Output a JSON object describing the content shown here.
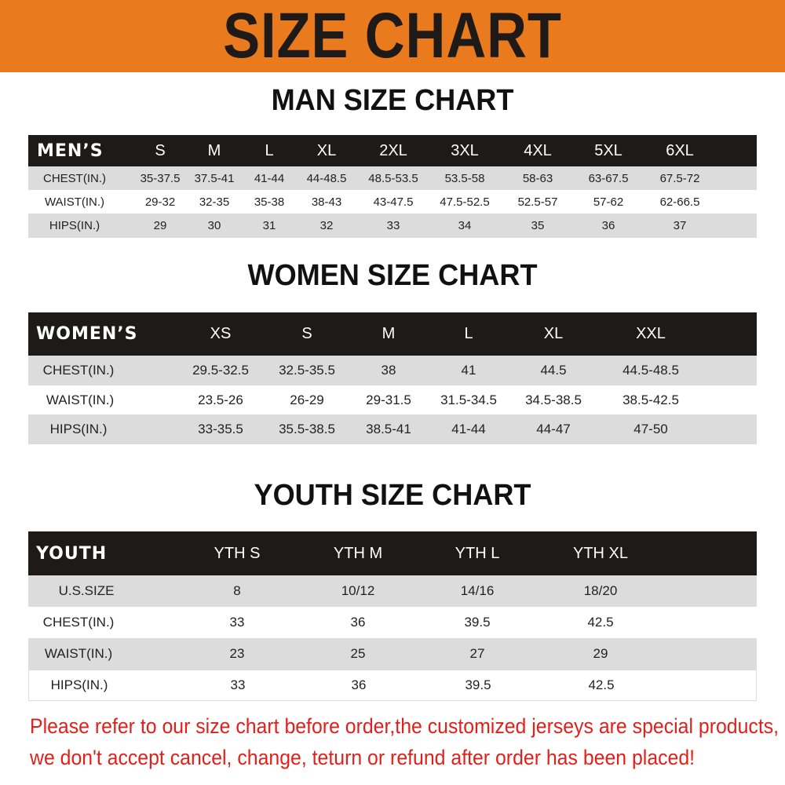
{
  "title": "SIZE CHART",
  "colors": {
    "banner": "#e97a1d",
    "header_row": "#1e1a17",
    "stripe": "#dcdcdc",
    "notice": "#e0201b"
  },
  "men": {
    "title": "MAN SIZE CHART",
    "header": [
      "MEN’S",
      "S",
      "M",
      "L",
      "XL",
      "2XL",
      "3XL",
      "4XL",
      "5XL",
      "6XL"
    ],
    "rows": [
      [
        "CHEST(IN.)",
        "35-37.5",
        "37.5-41",
        "41-44",
        "44-48.5",
        "48.5-53.5",
        "53.5-58",
        "58-63",
        "63-67.5",
        "67.5-72"
      ],
      [
        "WAIST(IN.)",
        "29-32",
        "32-35",
        "35-38",
        "38-43",
        "43-47.5",
        "47.5-52.5",
        "52.5-57",
        "57-62",
        "62-66.5"
      ],
      [
        "HIPS(IN.)",
        "29",
        "30",
        "31",
        "32",
        "33",
        "34",
        "35",
        "36",
        "37"
      ]
    ]
  },
  "women": {
    "title": "WOMEN SIZE CHART",
    "header": [
      "WOMEN’S",
      "XS",
      "S",
      "M",
      "L",
      "XL",
      "XXL"
    ],
    "rows": [
      [
        "CHEST(IN.)",
        "29.5-32.5",
        "32.5-35.5",
        "38",
        "41",
        "44.5",
        "44.5-48.5"
      ],
      [
        "WAIST(IN.)",
        "23.5-26",
        "26-29",
        "29-31.5",
        "31.5-34.5",
        "34.5-38.5",
        "38.5-42.5"
      ],
      [
        "HIPS(IN.)",
        "33-35.5",
        "35.5-38.5",
        "38.5-41",
        "41-44",
        "44-47",
        "47-50"
      ]
    ]
  },
  "youth": {
    "title": "YOUTH SIZE CHART",
    "header": [
      "YOUTH",
      "YTH S",
      "YTH M",
      "YTH L",
      "YTH XL"
    ],
    "rows": [
      [
        "U.S.SIZE",
        "8",
        "10/12",
        "14/16",
        "18/20"
      ],
      [
        "CHEST(IN.)",
        "33",
        "36",
        "39.5",
        "42.5"
      ],
      [
        "WAIST(IN.)",
        "23",
        "25",
        "27",
        "29"
      ],
      [
        "HIPS(IN.)",
        "33",
        "36",
        "39.5",
        "42.5"
      ]
    ]
  },
  "notice": [
    "Please refer to our size chart before order,the customized jerseys are special products,",
    "we don't accept cancel, change, teturn or refund after order has been placed!"
  ]
}
